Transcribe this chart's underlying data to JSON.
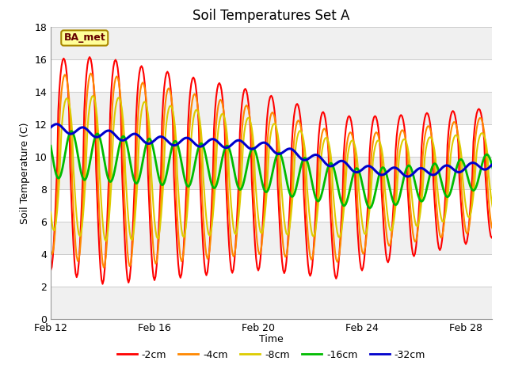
{
  "title": "Soil Temperatures Set A",
  "xlabel": "Time",
  "ylabel": "Soil Temperature (C)",
  "ylim": [
    0,
    18
  ],
  "xlim_days": [
    0,
    17
  ],
  "x_tick_labels": [
    "Feb 12",
    "Feb 16",
    "Feb 20",
    "Feb 24",
    "Feb 28"
  ],
  "x_tick_positions": [
    0,
    4,
    8,
    12,
    16
  ],
  "legend_label": "BA_met",
  "line_colors": [
    "#ff0000",
    "#ff8800",
    "#ddcc00",
    "#00bb00",
    "#0000cc"
  ],
  "line_labels": [
    "-2cm",
    "-4cm",
    "-8cm",
    "-16cm",
    "-32cm"
  ],
  "background_color": "#ffffff",
  "band_colors_even": "#e8e8e8",
  "band_colors_odd": "#f8f8f8",
  "title_fontsize": 12,
  "axis_label_fontsize": 9
}
